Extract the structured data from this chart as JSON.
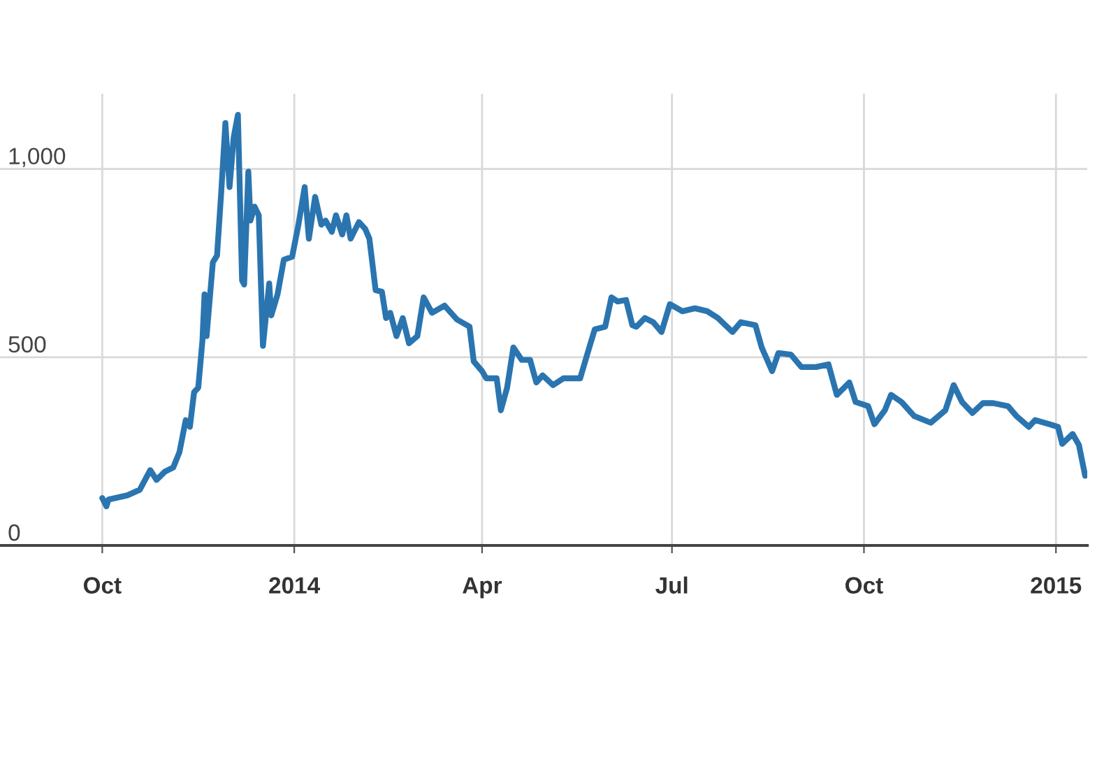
{
  "chart_data": {
    "type": "line",
    "x": [
      "2013-10-01",
      "2013-10-03",
      "2013-10-04",
      "2013-10-13",
      "2013-10-19",
      "2013-10-24",
      "2013-10-27",
      "2013-10-31",
      "2013-11-04",
      "2013-11-07",
      "2013-11-10",
      "2013-11-12",
      "2013-11-14",
      "2013-11-16",
      "2013-11-18",
      "2013-11-19",
      "2013-11-20",
      "2013-11-23",
      "2013-11-25",
      "2013-11-27",
      "2013-11-29",
      "2013-12-01",
      "2013-12-03",
      "2013-12-05",
      "2013-12-07",
      "2013-12-08",
      "2013-12-10",
      "2013-12-11",
      "2013-12-13",
      "2013-12-15",
      "2013-12-17",
      "2013-12-20",
      "2013-12-21",
      "2013-12-24",
      "2013-12-27",
      "2013-12-31",
      "2014-01-03",
      "2014-01-06",
      "2014-01-08",
      "2014-01-11",
      "2014-01-14",
      "2014-01-16",
      "2014-01-19",
      "2014-01-21",
      "2014-01-24",
      "2014-01-26",
      "2014-01-28",
      "2014-02-01",
      "2014-02-04",
      "2014-02-06",
      "2014-02-09",
      "2014-02-12",
      "2014-02-14",
      "2014-02-16",
      "2014-02-19",
      "2014-02-22",
      "2014-02-25",
      "2014-03-01",
      "2014-03-04",
      "2014-03-08",
      "2014-03-14",
      "2014-03-20",
      "2014-03-26",
      "2014-03-28",
      "2014-04-01",
      "2014-04-03",
      "2014-04-08",
      "2014-04-10",
      "2014-04-13",
      "2014-04-16",
      "2014-04-20",
      "2014-04-24",
      "2014-04-27",
      "2014-04-30",
      "2014-05-05",
      "2014-05-10",
      "2014-05-18",
      "2014-05-22",
      "2014-05-25",
      "2014-05-30",
      "2014-06-02",
      "2014-06-05",
      "2014-06-09",
      "2014-06-12",
      "2014-06-14",
      "2014-06-18",
      "2014-06-22",
      "2014-06-26",
      "2014-06-30",
      "2014-07-06",
      "2014-07-12",
      "2014-07-18",
      "2014-07-23",
      "2014-07-30",
      "2014-08-03",
      "2014-08-10",
      "2014-08-13",
      "2014-08-18",
      "2014-08-21",
      "2014-08-27",
      "2014-09-01",
      "2014-09-08",
      "2014-09-14",
      "2014-09-18",
      "2014-09-24",
      "2014-09-27",
      "2014-10-03",
      "2014-10-06",
      "2014-10-11",
      "2014-10-14",
      "2014-10-19",
      "2014-10-25",
      "2014-11-02",
      "2014-11-09",
      "2014-11-13",
      "2014-11-17",
      "2014-11-22",
      "2014-11-27",
      "2014-12-02",
      "2014-12-09",
      "2014-12-13",
      "2014-12-19",
      "2014-12-22",
      "2014-12-29",
      "2015-01-02",
      "2015-01-04",
      "2015-01-09",
      "2015-01-12",
      "2015-01-15"
    ],
    "series": [
      {
        "color": "#2a75b0",
        "values": [
          126,
          104,
          122,
          133,
          148,
          200,
          174,
          196,
          207,
          248,
          333,
          315,
          407,
          419,
          544,
          667,
          556,
          752,
          770,
          937,
          1122,
          952,
          1085,
          1144,
          704,
          693,
          993,
          863,
          900,
          877,
          530,
          696,
          611,
          667,
          759,
          767,
          852,
          952,
          815,
          926,
          852,
          863,
          833,
          877,
          826,
          877,
          815,
          859,
          841,
          815,
          678,
          674,
          604,
          618,
          556,
          604,
          537,
          556,
          659,
          618,
          637,
          600,
          581,
          489,
          463,
          444,
          444,
          359,
          419,
          526,
          493,
          493,
          433,
          452,
          426,
          444,
          444,
          519,
          574,
          581,
          659,
          648,
          652,
          585,
          581,
          604,
          593,
          567,
          641,
          622,
          630,
          622,
          604,
          567,
          593,
          585,
          526,
          463,
          511,
          507,
          474,
          474,
          481,
          400,
          433,
          381,
          370,
          322,
          359,
          400,
          381,
          344,
          326,
          359,
          426,
          381,
          352,
          378,
          378,
          370,
          344,
          315,
          333,
          322,
          315,
          270,
          296,
          267,
          185
        ]
      }
    ],
    "xlim": [
      "2013-08-13",
      "2015-01-16"
    ],
    "xticks": [
      {
        "value": "2013-10-01",
        "label": "Oct"
      },
      {
        "value": "2014-01-01",
        "label": "2014"
      },
      {
        "value": "2014-04-01",
        "label": "Apr"
      },
      {
        "value": "2014-07-01",
        "label": "Jul"
      },
      {
        "value": "2014-10-01",
        "label": "Oct"
      },
      {
        "value": "2015-01-01",
        "label": "2015"
      }
    ],
    "ylim": [
      0,
      1200
    ],
    "yticks": [
      0,
      500,
      {
        "value": 1000,
        "label": "1,000"
      }
    ],
    "grid": true,
    "marker": "none",
    "line_style": "solid"
  }
}
